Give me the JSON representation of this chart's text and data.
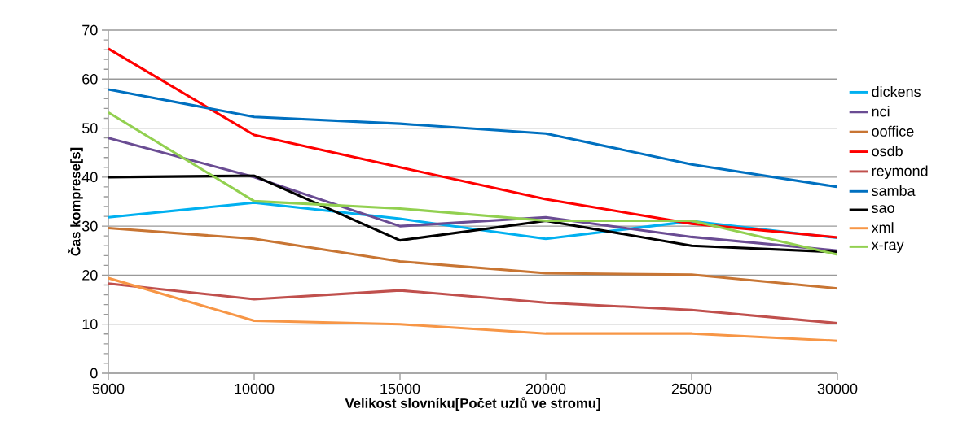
{
  "chart_data": {
    "type": "line",
    "xlabel": "Velikost slovníku[Počet uzlů ve stromu]",
    "ylabel": "Čas komprese[s]",
    "x": [
      5000,
      10000,
      15000,
      20000,
      25000,
      30000
    ],
    "xlim": [
      5000,
      30000
    ],
    "xticks": [
      5000,
      10000,
      15000,
      20000,
      25000,
      30000
    ],
    "ylim": [
      0,
      70
    ],
    "yticks": [
      0,
      10,
      20,
      30,
      40,
      50,
      60,
      70
    ],
    "grid": "y",
    "legend": "right",
    "marker": "none",
    "series": [
      {
        "name": "dickens",
        "color": "#00b0f0",
        "values": [
          31.8,
          34.8,
          31.5,
          27.4,
          31.0,
          27.6
        ]
      },
      {
        "name": "nci",
        "color": "#6a4c93",
        "values": [
          48.0,
          40.0,
          30.0,
          31.8,
          27.8,
          25.0
        ]
      },
      {
        "name": "ooffice",
        "color": "#c87533",
        "values": [
          29.6,
          27.4,
          22.8,
          20.4,
          20.1,
          17.3
        ]
      },
      {
        "name": "osdb",
        "color": "#ff0000",
        "values": [
          66.2,
          48.6,
          42.0,
          35.5,
          30.5,
          27.7
        ]
      },
      {
        "name": "reymond",
        "color": "#c0504d",
        "values": [
          18.3,
          15.1,
          16.9,
          14.4,
          12.9,
          10.2
        ]
      },
      {
        "name": "samba",
        "color": "#0070c0",
        "values": [
          57.9,
          52.3,
          50.9,
          48.9,
          42.6,
          38.0
        ]
      },
      {
        "name": "sao",
        "color": "#000000",
        "values": [
          40.0,
          40.3,
          27.1,
          31.1,
          26.0,
          24.7
        ]
      },
      {
        "name": "xml",
        "color": "#f79646",
        "values": [
          19.4,
          10.7,
          10.0,
          8.1,
          8.1,
          6.6
        ]
      },
      {
        "name": "x-ray",
        "color": "#92d050",
        "values": [
          53.2,
          35.1,
          33.6,
          31.1,
          31.1,
          24.2
        ]
      }
    ]
  }
}
